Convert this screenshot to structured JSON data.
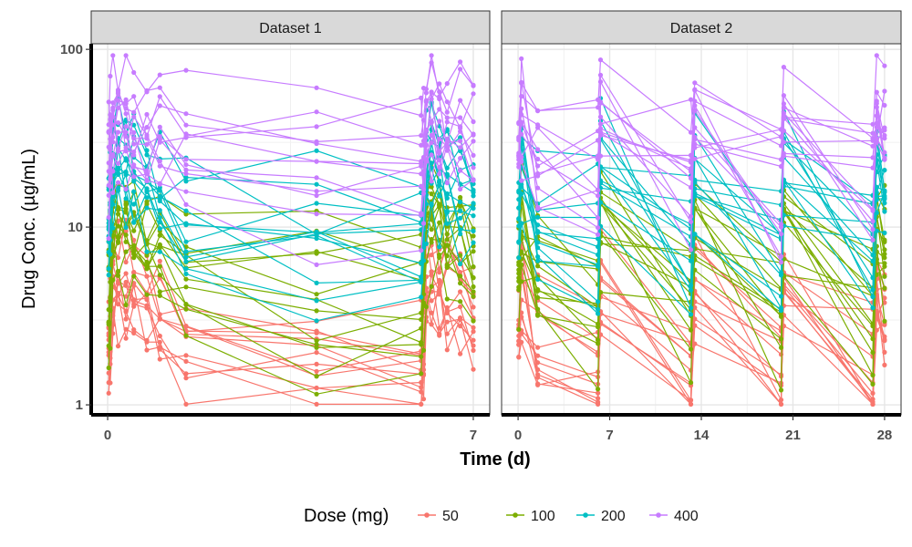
{
  "chart_data": {
    "type": "line",
    "panels": [
      {
        "title": "Dataset 1",
        "xlim": [
          0,
          7
        ],
        "xticks": [
          0,
          7
        ],
        "dose_times": [
          0,
          6
        ],
        "sample_times": [
          0.02,
          0.05,
          0.1,
          0.2,
          0.35,
          0.5,
          0.75,
          1.0,
          1.5,
          4.0,
          6.0,
          6.05,
          6.1,
          6.2,
          6.35,
          6.5,
          6.75,
          7.0
        ]
      },
      {
        "title": "Dataset 2",
        "xlim": [
          0,
          28
        ],
        "xticks": [
          0,
          7,
          14,
          21,
          28
        ],
        "dose_times": [
          0,
          6.1,
          13.2,
          20.1,
          27.1
        ],
        "sample_times": [
          0.05,
          0.25,
          1.5,
          6.1,
          6.3,
          13.2,
          13.5,
          20.1,
          20.3,
          27.1,
          27.4,
          28.0
        ]
      }
    ],
    "xlabel": "Time (d)",
    "ylabel": "Drug Conc. (µg/mL)",
    "yscale": "log",
    "ylim": [
      0.9,
      105
    ],
    "yticks": [
      1,
      10,
      100
    ],
    "grid": true,
    "legend": {
      "title": "Dose (mg)",
      "position": "bottom",
      "entries": [
        {
          "label": "50",
          "color": "#F8766D"
        },
        {
          "label": "100",
          "color": "#7CAE00"
        },
        {
          "label": "200",
          "color": "#00BFC4"
        },
        {
          "label": "400",
          "color": "#C77CFF"
        }
      ]
    },
    "dose_groups": [
      {
        "dose": "50",
        "color": "#F8766D",
        "peak_range": [
          3,
          10
        ],
        "trough_range": [
          1.0,
          3.5
        ]
      },
      {
        "dose": "100",
        "color": "#7CAE00",
        "peak_range": [
          6,
          20
        ],
        "trough_range": [
          1.5,
          9
        ]
      },
      {
        "dose": "200",
        "color": "#00BFC4",
        "peak_range": [
          12,
          45
        ],
        "trough_range": [
          3,
          20
        ]
      },
      {
        "dose": "400",
        "color": "#C77CFF",
        "peak_range": [
          20,
          90
        ],
        "trough_range": [
          8,
          45
        ]
      }
    ],
    "subjects_per_group": 12
  }
}
